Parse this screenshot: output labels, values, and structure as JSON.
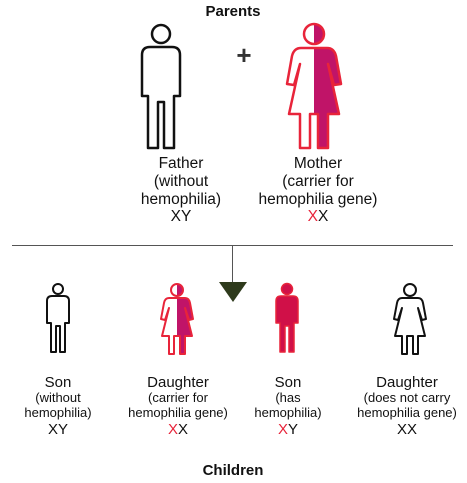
{
  "diagram": {
    "parents_heading": "Parents",
    "children_heading": "Children",
    "plus_sign": "+",
    "colors": {
      "affected": "#e8243a",
      "carrier_fill": "#c01468",
      "outline": "#111111"
    }
  },
  "parents": {
    "father": {
      "label": "Father",
      "status": [
        "(without",
        "hemophilia)"
      ],
      "genotype": {
        "first": "X",
        "second": "Y"
      },
      "icon": "male-figure-unaffected"
    },
    "mother": {
      "label": "Mother",
      "status": [
        "(carrier for",
        "hemophilia gene)"
      ],
      "genotype": {
        "first": "X",
        "second": "X"
      },
      "icon": "female-figure-carrier"
    }
  },
  "children": [
    {
      "label": "Son",
      "status": [
        "(without",
        "hemophilia)"
      ],
      "genotype": {
        "first": "X",
        "second": "Y"
      },
      "icon": "male-figure-unaffected"
    },
    {
      "label": "Daughter",
      "status": [
        "(carrier for",
        "hemophilia gene)"
      ],
      "genotype": {
        "first": "X",
        "second": "X"
      },
      "icon": "female-figure-carrier"
    },
    {
      "label": "Son",
      "status": [
        "(has",
        "hemophilia)"
      ],
      "genotype": {
        "first": "X",
        "second": "Y"
      },
      "icon": "male-figure-affected"
    },
    {
      "label": "Daughter",
      "status": [
        "(does not carry",
        "hemophilia gene)"
      ],
      "genotype": {
        "first": "X",
        "second": "X"
      },
      "icon": "female-figure-unaffected"
    }
  ]
}
